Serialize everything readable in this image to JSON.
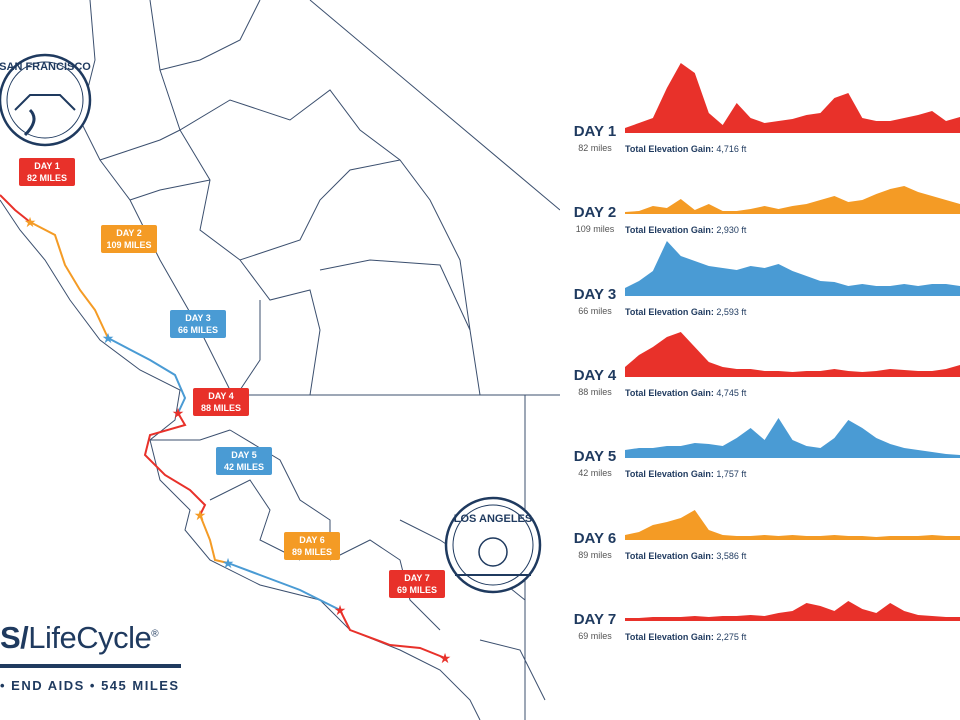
{
  "colors": {
    "red": "#e8312a",
    "orange": "#f49b25",
    "blue": "#4a9bd4",
    "navy": "#1f3a5f"
  },
  "badges": {
    "sf": "SAN FRANCISCO",
    "la": "LOS ANGELES"
  },
  "map_labels": [
    {
      "day": "DAY 1",
      "miles": "82 MILES",
      "color": "red"
    },
    {
      "day": "DAY 2",
      "miles": "109 MILES",
      "color": "orange"
    },
    {
      "day": "DAY 3",
      "miles": "66 MILES",
      "color": "blue"
    },
    {
      "day": "DAY 4",
      "miles": "88 MILES",
      "color": "red"
    },
    {
      "day": "DAY 5",
      "miles": "42 MILES",
      "color": "blue"
    },
    {
      "day": "DAY 6",
      "miles": "89 MILES",
      "color": "orange"
    },
    {
      "day": "DAY 7",
      "miles": "69 MILES",
      "color": "red"
    }
  ],
  "profiles": {
    "gain_label": "Total Elevation Gain:",
    "days": [
      {
        "day": "DAY 1",
        "miles": "82 miles",
        "gain": "4,716 ft",
        "color": "red"
      },
      {
        "day": "DAY 2",
        "miles": "109 miles",
        "gain": "2,930 ft",
        "color": "orange"
      },
      {
        "day": "DAY 3",
        "miles": "66 miles",
        "gain": "2,593 ft",
        "color": "blue"
      },
      {
        "day": "DAY 4",
        "miles": "88 miles",
        "gain": "4,745 ft",
        "color": "red"
      },
      {
        "day": "DAY 5",
        "miles": "42 miles",
        "gain": "1,757 ft",
        "color": "blue"
      },
      {
        "day": "DAY 6",
        "miles": "89 miles",
        "gain": "3,586 ft",
        "color": "orange"
      },
      {
        "day": "DAY 7",
        "miles": "69 miles",
        "gain": "2,275 ft",
        "color": "red"
      }
    ]
  },
  "logo": {
    "prefix": "S/",
    "name": "LifeCycle",
    "reg": "®",
    "tagline": "• END AIDS • 545 MILES"
  }
}
